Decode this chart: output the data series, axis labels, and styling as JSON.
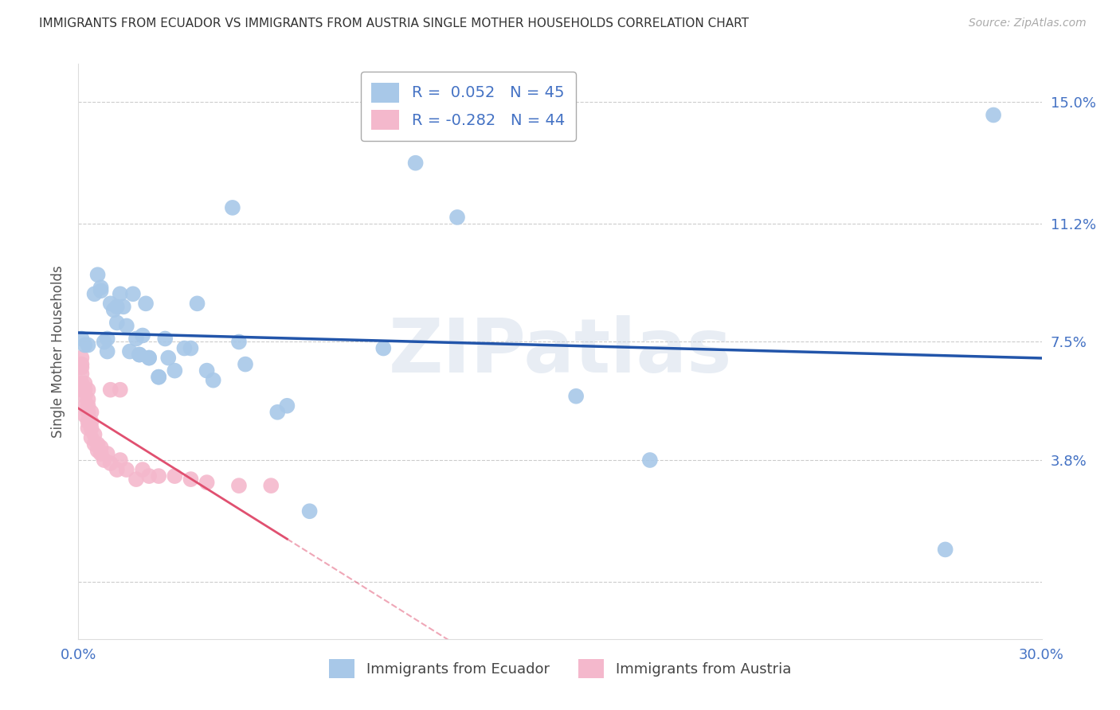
{
  "title": "IMMIGRANTS FROM ECUADOR VS IMMIGRANTS FROM AUSTRIA SINGLE MOTHER HOUSEHOLDS CORRELATION CHART",
  "source": "Source: ZipAtlas.com",
  "ylabel_label": "Single Mother Households",
  "ylabel_ticks": [
    0.0,
    0.038,
    0.075,
    0.112,
    0.15
  ],
  "ylabel_tick_labels": [
    "",
    "3.8%",
    "7.5%",
    "11.2%",
    "15.0%"
  ],
  "xlim": [
    0.0,
    0.3
  ],
  "ylim": [
    -0.018,
    0.162
  ],
  "watermark": "ZIPatlas",
  "ecuador_points": [
    [
      0.001,
      0.076
    ],
    [
      0.002,
      0.074
    ],
    [
      0.003,
      0.074
    ],
    [
      0.005,
      0.09
    ],
    [
      0.006,
      0.096
    ],
    [
      0.007,
      0.092
    ],
    [
      0.007,
      0.091
    ],
    [
      0.008,
      0.075
    ],
    [
      0.009,
      0.076
    ],
    [
      0.009,
      0.072
    ],
    [
      0.01,
      0.087
    ],
    [
      0.011,
      0.085
    ],
    [
      0.012,
      0.086
    ],
    [
      0.012,
      0.081
    ],
    [
      0.013,
      0.09
    ],
    [
      0.014,
      0.086
    ],
    [
      0.015,
      0.08
    ],
    [
      0.016,
      0.072
    ],
    [
      0.017,
      0.09
    ],
    [
      0.018,
      0.076
    ],
    [
      0.019,
      0.071
    ],
    [
      0.019,
      0.071
    ],
    [
      0.02,
      0.077
    ],
    [
      0.021,
      0.087
    ],
    [
      0.022,
      0.07
    ],
    [
      0.022,
      0.07
    ],
    [
      0.025,
      0.064
    ],
    [
      0.025,
      0.064
    ],
    [
      0.027,
      0.076
    ],
    [
      0.028,
      0.07
    ],
    [
      0.03,
      0.066
    ],
    [
      0.033,
      0.073
    ],
    [
      0.035,
      0.073
    ],
    [
      0.037,
      0.087
    ],
    [
      0.04,
      0.066
    ],
    [
      0.042,
      0.063
    ],
    [
      0.048,
      0.117
    ],
    [
      0.05,
      0.075
    ],
    [
      0.052,
      0.068
    ],
    [
      0.062,
      0.053
    ],
    [
      0.065,
      0.055
    ],
    [
      0.072,
      0.022
    ],
    [
      0.095,
      0.073
    ],
    [
      0.105,
      0.131
    ],
    [
      0.118,
      0.114
    ],
    [
      0.155,
      0.058
    ],
    [
      0.178,
      0.038
    ],
    [
      0.27,
      0.01
    ],
    [
      0.285,
      0.146
    ]
  ],
  "austria_points": [
    [
      0.001,
      0.06
    ],
    [
      0.001,
      0.062
    ],
    [
      0.001,
      0.065
    ],
    [
      0.001,
      0.067
    ],
    [
      0.001,
      0.068
    ],
    [
      0.001,
      0.07
    ],
    [
      0.002,
      0.052
    ],
    [
      0.002,
      0.055
    ],
    [
      0.002,
      0.058
    ],
    [
      0.002,
      0.06
    ],
    [
      0.002,
      0.062
    ],
    [
      0.003,
      0.048
    ],
    [
      0.003,
      0.05
    ],
    [
      0.003,
      0.053
    ],
    [
      0.003,
      0.055
    ],
    [
      0.003,
      0.057
    ],
    [
      0.003,
      0.06
    ],
    [
      0.004,
      0.045
    ],
    [
      0.004,
      0.048
    ],
    [
      0.004,
      0.05
    ],
    [
      0.004,
      0.053
    ],
    [
      0.005,
      0.043
    ],
    [
      0.005,
      0.046
    ],
    [
      0.006,
      0.041
    ],
    [
      0.006,
      0.043
    ],
    [
      0.007,
      0.04
    ],
    [
      0.007,
      0.042
    ],
    [
      0.008,
      0.038
    ],
    [
      0.009,
      0.04
    ],
    [
      0.01,
      0.037
    ],
    [
      0.01,
      0.06
    ],
    [
      0.012,
      0.035
    ],
    [
      0.013,
      0.038
    ],
    [
      0.013,
      0.06
    ],
    [
      0.015,
      0.035
    ],
    [
      0.018,
      0.032
    ],
    [
      0.02,
      0.035
    ],
    [
      0.022,
      0.033
    ],
    [
      0.025,
      0.033
    ],
    [
      0.03,
      0.033
    ],
    [
      0.035,
      0.032
    ],
    [
      0.04,
      0.031
    ],
    [
      0.05,
      0.03
    ],
    [
      0.06,
      0.03
    ]
  ],
  "ecuador_color": "#a8c8e8",
  "austria_color": "#f4b8cc",
  "ecuador_line_color": "#2255aa",
  "austria_line_color": "#e05070",
  "grid_color": "#cccccc",
  "title_color": "#333333",
  "tick_label_color": "#4472c4",
  "background_color": "#ffffff"
}
